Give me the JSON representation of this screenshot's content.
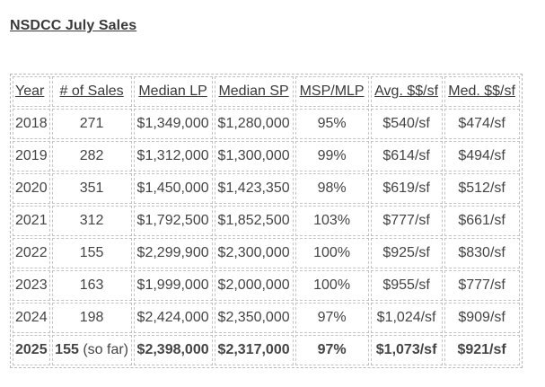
{
  "title": "NSDCC July Sales",
  "table": {
    "headers": [
      "Year",
      "# of Sales",
      "Median LP",
      "Median SP",
      "MSP/MLP",
      "Avg. $$/sf",
      "Med. $$/sf"
    ],
    "rows": [
      {
        "year": "2018",
        "sales": "271",
        "median_lp": "$1,349,000",
        "median_sp": "$1,280,000",
        "msp_mlp": "95%",
        "avg_psf": "$540/sf",
        "med_psf": "$474/sf"
      },
      {
        "year": "2019",
        "sales": "282",
        "median_lp": "$1,312,000",
        "median_sp": "$1,300,000",
        "msp_mlp": "99%",
        "avg_psf": "$614/sf",
        "med_psf": "$494/sf"
      },
      {
        "year": "2020",
        "sales": "351",
        "median_lp": "$1,450,000",
        "median_sp": "$1,423,350",
        "msp_mlp": "98%",
        "avg_psf": "$619/sf",
        "med_psf": "$512/sf"
      },
      {
        "year": "2021",
        "sales": "312",
        "median_lp": "$1,792,500",
        "median_sp": "$1,852,500",
        "msp_mlp": "103%",
        "avg_psf": "$777/sf",
        "med_psf": "$661/sf"
      },
      {
        "year": "2022",
        "sales": "155",
        "median_lp": "$2,299,900",
        "median_sp": "$2,300,000",
        "msp_mlp": "100%",
        "avg_psf": "$925/sf",
        "med_psf": "$830/sf"
      },
      {
        "year": "2023",
        "sales": "163",
        "median_lp": "$1,999,000",
        "median_sp": "$2,000,000",
        "msp_mlp": "100%",
        "avg_psf": "$955/sf",
        "med_psf": "$777/sf"
      },
      {
        "year": "2024",
        "sales": "198",
        "median_lp": "$2,424,000",
        "median_sp": "$2,350,000",
        "msp_mlp": "97%",
        "avg_psf": "$1,024/sf",
        "med_psf": "$909/sf"
      },
      {
        "year": "2025",
        "sales": "155",
        "sales_note": " (so far)",
        "median_lp": "$2,398,000",
        "median_sp": "$2,317,000",
        "msp_mlp": "97%",
        "avg_psf": "$1,073/sf",
        "med_psf": "$921/sf"
      }
    ]
  }
}
